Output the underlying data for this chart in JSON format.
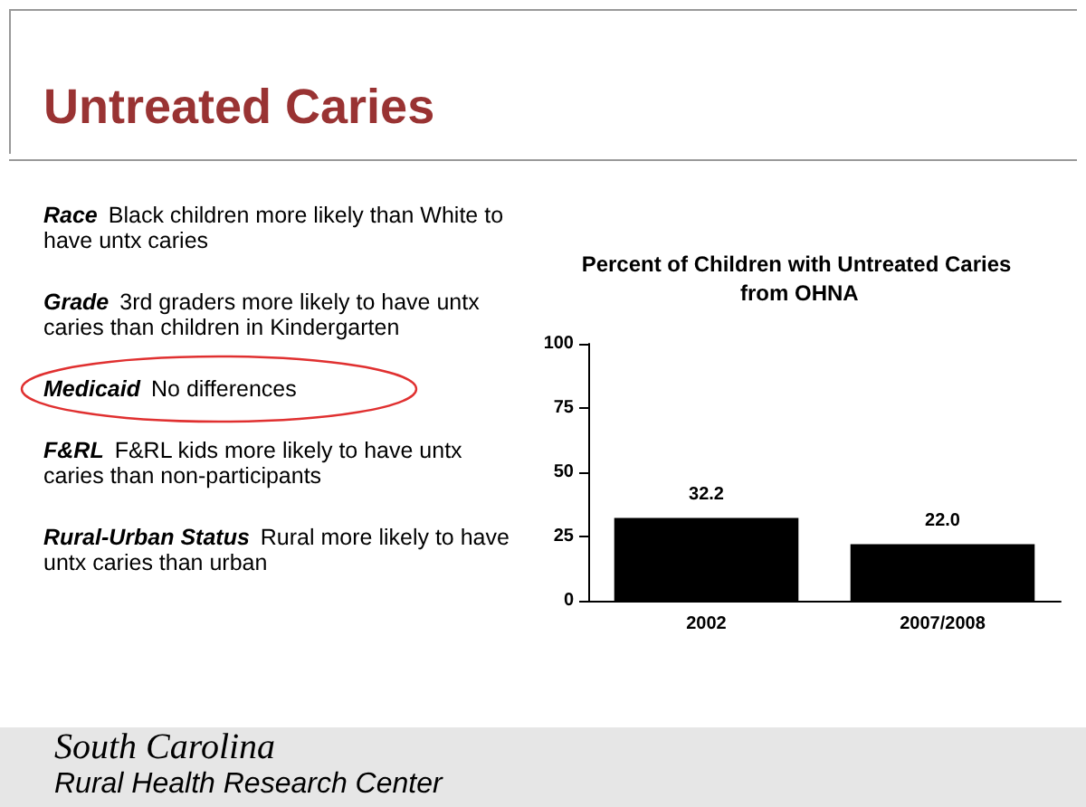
{
  "chart_data": {
    "type": "bar",
    "title": "Untreated Caries",
    "subtitle": "Percent of Children with Untreated Caries from OHNA",
    "categories": [
      "2002",
      "2007/2008"
    ],
    "values": [
      32.2,
      22.0
    ],
    "value_labels": [
      "32.2",
      "22.0"
    ],
    "color": "#000000",
    "ylim": [
      0,
      100
    ],
    "yticks": [
      0,
      25,
      50,
      75,
      100
    ],
    "grid": false,
    "annotations": [
      "Race",
      "Black children more likely than White to have untx caries",
      "Grade",
      "3rd graders more likely to have untx caries than children in Kindergarten",
      "Medicaid",
      "No differences",
      "F&RL",
      "F&RL kids more likely to have untx caries than non-participants",
      "Rural-Urban Status",
      "Rural more likely to have untx caries than urban",
      "South Carolina",
      "Rural Health Research Center"
    ]
  }
}
